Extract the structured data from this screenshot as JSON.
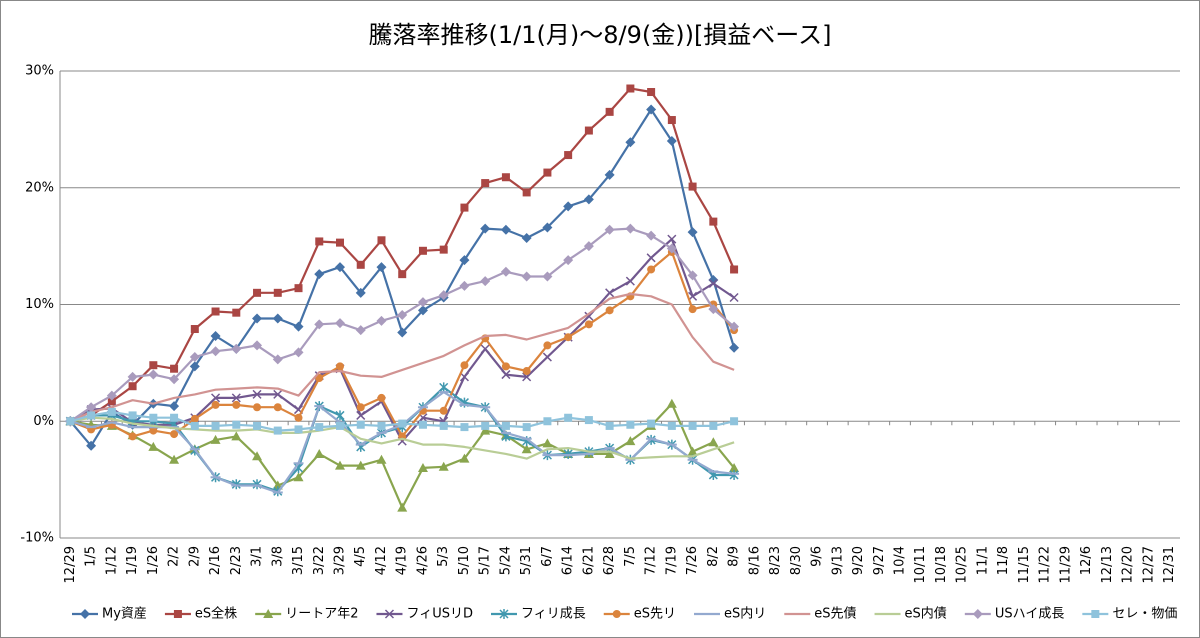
{
  "chart_data": {
    "type": "line",
    "title": "騰落率推移(1/1(月)～8/9(金))[損益ベース]",
    "categories": [
      "12/29",
      "1/5",
      "1/12",
      "1/19",
      "1/26",
      "2/2",
      "2/9",
      "2/16",
      "2/23",
      "3/1",
      "3/8",
      "3/15",
      "3/22",
      "3/29",
      "4/5",
      "4/12",
      "4/19",
      "4/26",
      "5/3",
      "5/10",
      "5/17",
      "5/24",
      "5/31",
      "6/7",
      "6/14",
      "6/21",
      "6/28",
      "7/5",
      "7/12",
      "7/19",
      "7/26",
      "8/2",
      "8/9",
      "8/16",
      "8/23",
      "8/30",
      "9/6",
      "9/13",
      "9/20",
      "9/27",
      "10/4",
      "10/11",
      "10/18",
      "10/25",
      "11/1",
      "11/8",
      "11/15",
      "11/22",
      "11/29",
      "12/6",
      "12/13",
      "12/20",
      "12/27",
      "12/31"
    ],
    "ylim": [
      -10,
      30
    ],
    "yticks": [
      {
        "value": -10,
        "label": "-10%"
      },
      {
        "value": 0,
        "label": "0%"
      },
      {
        "value": 10,
        "label": "10%"
      },
      {
        "value": 20,
        "label": "20%"
      },
      {
        "value": 30,
        "label": "30%"
      }
    ],
    "grid": true,
    "legend": "bottom",
    "series": [
      {
        "name": "My資産",
        "color": "#4572a7",
        "marker": "diamond",
        "values": [
          0,
          -2.1,
          0.8,
          -0.3,
          1.5,
          1.3,
          4.7,
          7.3,
          6.2,
          8.8,
          8.8,
          8.1,
          12.6,
          13.2,
          11.0,
          13.2,
          7.6,
          9.5,
          10.6,
          13.8,
          16.5,
          16.4,
          15.7,
          16.6,
          18.4,
          19.0,
          21.1,
          23.9,
          26.7,
          24.0,
          16.2,
          12.1,
          6.3,
          null,
          null,
          null,
          null,
          null,
          null,
          null,
          null,
          null,
          null,
          null,
          null,
          null,
          null,
          null,
          null,
          null,
          null,
          null,
          null,
          null
        ]
      },
      {
        "name": "eS全株",
        "color": "#aa4643",
        "marker": "square",
        "values": [
          0,
          0.5,
          1.7,
          3.0,
          4.8,
          4.5,
          7.9,
          9.4,
          9.3,
          11.0,
          11.0,
          11.4,
          15.4,
          15.3,
          13.4,
          15.5,
          12.6,
          14.6,
          14.7,
          18.3,
          20.4,
          20.9,
          19.6,
          21.3,
          22.8,
          24.9,
          26.5,
          28.5,
          28.2,
          25.8,
          20.1,
          17.1,
          13.0,
          null,
          null,
          null,
          null,
          null,
          null,
          null,
          null,
          null,
          null,
          null,
          null,
          null,
          null,
          null,
          null,
          null,
          null,
          null,
          null,
          null
        ]
      },
      {
        "name": "リートア年2",
        "color": "#89a54e",
        "marker": "triangle",
        "values": [
          0,
          -0.3,
          -0.4,
          -1.2,
          -2.2,
          -3.3,
          -2.4,
          -1.6,
          -1.3,
          -3.0,
          -5.5,
          -4.8,
          -2.8,
          -3.8,
          -3.8,
          -3.3,
          -7.4,
          -4.0,
          -3.9,
          -3.2,
          -0.8,
          -1.2,
          -2.4,
          -1.9,
          -2.8,
          -2.8,
          -2.8,
          -1.7,
          -0.4,
          1.5,
          -2.6,
          -1.8,
          -4.0,
          null,
          null,
          null,
          null,
          null,
          null,
          null,
          null,
          null,
          null,
          null,
          null,
          null,
          null,
          null,
          null,
          null,
          null,
          null,
          null,
          null
        ]
      },
      {
        "name": "フィUSリD",
        "color": "#71588f",
        "marker": "x",
        "values": [
          0,
          1.0,
          1.1,
          -0.1,
          -0.3,
          -0.3,
          0.3,
          2.0,
          2.0,
          2.3,
          2.3,
          1.0,
          3.9,
          4.5,
          0.5,
          1.7,
          -1.7,
          0.3,
          0.0,
          3.8,
          6.2,
          4.0,
          3.8,
          5.5,
          7.2,
          9.0,
          11.0,
          12.0,
          14.0,
          15.6,
          10.7,
          11.8,
          10.6,
          null,
          null,
          null,
          null,
          null,
          null,
          null,
          null,
          null,
          null,
          null,
          null,
          null,
          null,
          null,
          null,
          null,
          null,
          null,
          null,
          null
        ]
      },
      {
        "name": "フィリ成長",
        "color": "#4198af",
        "marker": "asterisk",
        "values": [
          0,
          0.5,
          0.5,
          0,
          0,
          -0.2,
          -2.5,
          -4.8,
          -5.4,
          -5.4,
          -6.0,
          -4.0,
          1.3,
          0.5,
          -2.2,
          -1.0,
          -0.5,
          1.2,
          2.9,
          1.6,
          1.2,
          -1.3,
          -1.7,
          -2.9,
          -2.8,
          -2.6,
          -2.3,
          -3.3,
          -1.6,
          -2.0,
          -3.3,
          -4.6,
          -4.6,
          null,
          null,
          null,
          null,
          null,
          null,
          null,
          null,
          null,
          null,
          null,
          null,
          null,
          null,
          null,
          null,
          null,
          null,
          null,
          null,
          null
        ]
      },
      {
        "name": "eS先リ",
        "color": "#db843d",
        "marker": "circle",
        "values": [
          0,
          -0.7,
          -0.3,
          -1.3,
          -0.8,
          -1.1,
          0.2,
          1.4,
          1.4,
          1.2,
          1.2,
          0.3,
          3.7,
          4.7,
          1.2,
          2.0,
          -1.3,
          0.9,
          0.9,
          4.8,
          7.1,
          4.7,
          4.3,
          6.5,
          7.2,
          8.3,
          9.5,
          10.7,
          13.0,
          14.5,
          9.6,
          10.0,
          7.8,
          null,
          null,
          null,
          null,
          null,
          null,
          null,
          null,
          null,
          null,
          null,
          null,
          null,
          null,
          null,
          null,
          null,
          null,
          null,
          null,
          null
        ]
      },
      {
        "name": "eS内リ",
        "color": "#93a9cf",
        "marker": "dash",
        "values": [
          0,
          -0.5,
          -0.1,
          -0.5,
          -0.5,
          -0.5,
          -2.4,
          -4.8,
          -5.5,
          -5.5,
          -6.1,
          -3.6,
          1.3,
          -0.1,
          -2.0,
          -1.0,
          -0.3,
          1.2,
          2.5,
          1.4,
          1.2,
          -1.0,
          -1.5,
          -2.9,
          -2.9,
          -2.8,
          -2.3,
          -3.3,
          -1.5,
          -2.0,
          -3.3,
          -4.3,
          -4.5,
          null,
          null,
          null,
          null,
          null,
          null,
          null,
          null,
          null,
          null,
          null,
          null,
          null,
          null,
          null,
          null,
          null,
          null,
          null,
          null,
          null
        ]
      },
      {
        "name": "eS先債",
        "color": "#d19392",
        "marker": "none",
        "values": [
          0,
          0.8,
          1.2,
          1.8,
          1.5,
          2.0,
          2.3,
          2.7,
          2.8,
          2.9,
          2.8,
          2.2,
          4.2,
          4.3,
          3.9,
          3.8,
          4.4,
          5.0,
          5.6,
          6.5,
          7.3,
          7.4,
          7.0,
          7.5,
          8.0,
          9.2,
          10.5,
          10.9,
          10.7,
          10.0,
          7.2,
          5.1,
          4.4,
          null,
          null,
          null,
          null,
          null,
          null,
          null,
          null,
          null,
          null,
          null,
          null,
          null,
          null,
          null,
          null,
          null,
          null,
          null,
          null,
          null
        ]
      },
      {
        "name": "eS内債",
        "color": "#b9cd96",
        "marker": "none",
        "values": [
          0,
          0.3,
          0.2,
          -0.2,
          -0.4,
          -0.6,
          -0.7,
          -0.8,
          -0.8,
          -0.7,
          -1.0,
          -1.0,
          -0.8,
          -0.5,
          -1.5,
          -1.9,
          -1.5,
          -2.0,
          -2.0,
          -2.2,
          -2.5,
          -2.8,
          -3.2,
          -2.4,
          -2.3,
          -2.6,
          -2.6,
          -3.2,
          -3.1,
          -3.0,
          -3.0,
          -2.4,
          -1.8,
          null,
          null,
          null,
          null,
          null,
          null,
          null,
          null,
          null,
          null,
          null,
          null,
          null,
          null,
          null,
          null,
          null,
          null,
          null,
          null,
          null
        ]
      },
      {
        "name": "USハイ成長",
        "color": "#a99bbd",
        "marker": "diamond",
        "values": [
          0,
          1.2,
          2.2,
          3.8,
          4.0,
          3.6,
          5.5,
          6.0,
          6.2,
          6.5,
          5.3,
          5.9,
          8.3,
          8.4,
          7.8,
          8.6,
          9.1,
          10.2,
          10.8,
          11.6,
          12.0,
          12.8,
          12.4,
          12.4,
          13.8,
          15.0,
          16.4,
          16.5,
          15.9,
          14.8,
          12.5,
          9.6,
          8.1,
          null,
          null,
          null,
          null,
          null,
          null,
          null,
          null,
          null,
          null,
          null,
          null,
          null,
          null,
          null,
          null,
          null,
          null,
          null,
          null,
          null
        ]
      },
      {
        "name": "セレ・物価",
        "color": "#8fc3dc",
        "marker": "square",
        "values": [
          0,
          0.5,
          0.8,
          0.5,
          0.3,
          0.3,
          -0.4,
          -0.4,
          -0.3,
          -0.4,
          -0.8,
          -0.7,
          -0.5,
          -0.4,
          -0.3,
          -0.4,
          -0.2,
          -0.3,
          -0.4,
          -0.5,
          -0.4,
          -0.4,
          -0.5,
          0.0,
          0.3,
          0.1,
          -0.4,
          -0.3,
          -0.2,
          -0.4,
          -0.4,
          -0.4,
          0.0,
          null,
          null,
          null,
          null,
          null,
          null,
          null,
          null,
          null,
          null,
          null,
          null,
          null,
          null,
          null,
          null,
          null,
          null,
          null,
          null,
          null
        ]
      }
    ]
  }
}
